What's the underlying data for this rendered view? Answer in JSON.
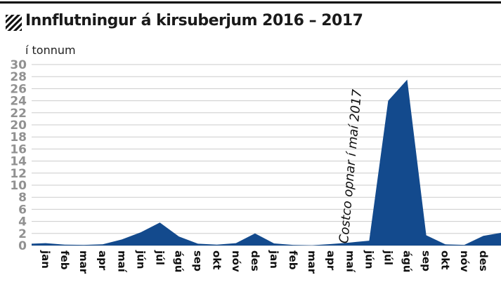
{
  "header": {
    "title": "Innflutningur á kirsuberjum 2016 – 2017"
  },
  "chart_data": {
    "type": "area",
    "title": "Innflutningur á kirsuberjum 2016 – 2017",
    "unit_label": "í tonnum",
    "annotation": "Costco opnar í maí 2017",
    "categories": [
      "jan",
      "feb",
      "mar",
      "apr",
      "maí",
      "jún",
      "júl",
      "ágú",
      "sep",
      "okt",
      "nóv",
      "des",
      "jan",
      "feb",
      "mar",
      "apr",
      "maí",
      "jún",
      "júl",
      "ágú",
      "sep",
      "okt",
      "nóv",
      "des"
    ],
    "values": [
      0.4,
      0.15,
      0.1,
      0.2,
      1.0,
      2.2,
      3.8,
      1.5,
      0.3,
      0.15,
      0.4,
      2.0,
      0.35,
      0.1,
      0.05,
      0.25,
      0.5,
      0.8,
      24,
      27.5,
      1.7,
      0.2,
      0.1,
      1.6
    ],
    "edge_left_value": 0.3,
    "edge_right_value": 2.1,
    "ylim": [
      0,
      30
    ],
    "ytick_step": 2,
    "yticks": [
      0,
      2,
      4,
      6,
      8,
      10,
      12,
      14,
      16,
      18,
      20,
      22,
      24,
      26,
      28,
      30
    ],
    "grid": true,
    "legend": false,
    "area_color": "#134a8d",
    "grid_color": "#cbcbcb",
    "ytick_color": "#919191",
    "xtick_color": "#111111"
  }
}
